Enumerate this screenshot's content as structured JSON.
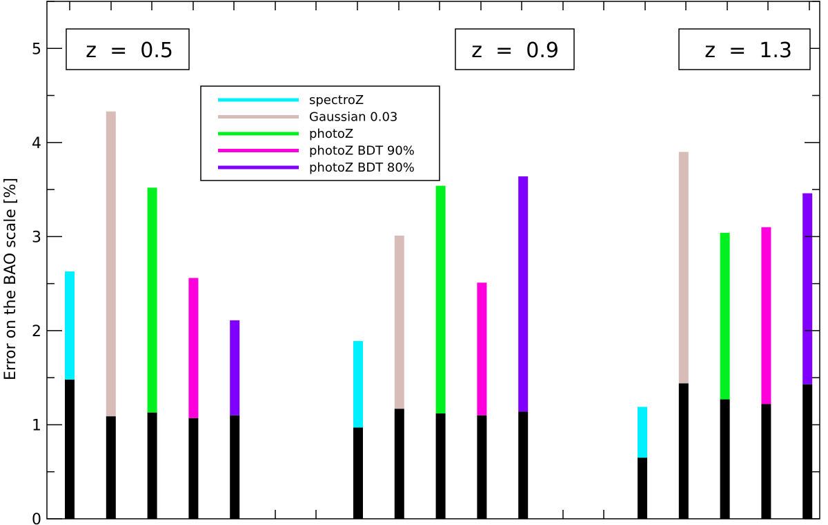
{
  "chart_data": {
    "type": "bar",
    "ylabel": "Error on the BAO scale [%]",
    "xlabel": "",
    "ylim": [
      0,
      5.5
    ],
    "yticks": [
      0,
      1,
      2,
      3,
      4,
      5
    ],
    "grid": false,
    "legend_position": "upper-left-center",
    "bar_style": "floating segment drawn on top of a black base segment starting at 0",
    "series_colors": {
      "spectroZ": "#00f0ff",
      "Gaussian 0.03": "#d8bcb8",
      "photoZ": "#00f020",
      "photoZ BDT 90%": "#ff00dd",
      "photoZ BDT 80%": "#8000ff",
      "base": "#000000"
    },
    "legend": [
      {
        "label": "spectroZ",
        "color": "#00f0ff"
      },
      {
        "label": "Gaussian 0.03",
        "color": "#d8bcb8"
      },
      {
        "label": "photoZ",
        "color": "#00f020"
      },
      {
        "label": "photoZ BDT 90%",
        "color": "#ff00dd"
      },
      {
        "label": "photoZ BDT 80%",
        "color": "#8000ff"
      }
    ],
    "groups": [
      {
        "label": "z  =  0.5",
        "bars": [
          {
            "series": "spectroZ",
            "base": 1.48,
            "top": 2.63
          },
          {
            "series": "Gaussian 0.03",
            "base": 1.09,
            "top": 4.33
          },
          {
            "series": "photoZ",
            "base": 1.13,
            "top": 3.52
          },
          {
            "series": "photoZ BDT 90%",
            "base": 1.07,
            "top": 2.56
          },
          {
            "series": "photoZ BDT 80%",
            "base": 1.1,
            "top": 2.11
          }
        ]
      },
      {
        "label": "z  =  0.9",
        "bars": [
          {
            "series": "spectroZ",
            "base": 0.97,
            "top": 1.89
          },
          {
            "series": "Gaussian 0.03",
            "base": 1.17,
            "top": 3.01
          },
          {
            "series": "photoZ",
            "base": 1.12,
            "top": 3.54
          },
          {
            "series": "photoZ BDT 90%",
            "base": 1.1,
            "top": 2.51
          },
          {
            "series": "photoZ BDT 80%",
            "base": 1.14,
            "top": 3.64
          }
        ]
      },
      {
        "label": "z  =  1.3",
        "bars": [
          {
            "series": "spectroZ",
            "base": 0.65,
            "top": 1.19
          },
          {
            "series": "Gaussian 0.03",
            "base": 1.44,
            "top": 3.9
          },
          {
            "series": "photoZ",
            "base": 1.27,
            "top": 3.04
          },
          {
            "series": "photoZ BDT 90%",
            "base": 1.22,
            "top": 3.1
          },
          {
            "series": "photoZ BDT 80%",
            "base": 1.43,
            "top": 3.46
          }
        ]
      }
    ]
  }
}
